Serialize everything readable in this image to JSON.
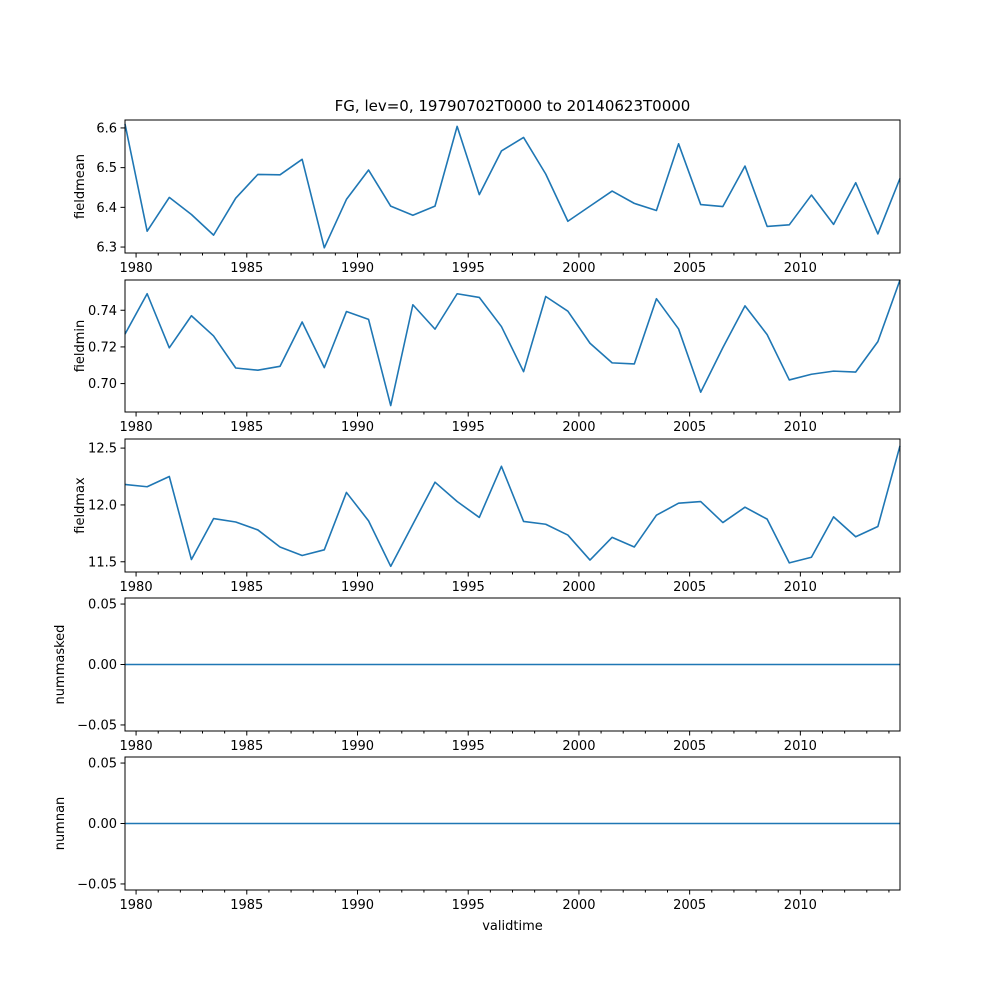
{
  "chart_data": [
    {
      "type": "line",
      "title": "FG, lev=0, 19790702T0000 to 20140623T0000",
      "ylabel": "fieldmean",
      "xlabel": "",
      "x": [
        1979.5,
        1980.5,
        1981.5,
        1982.5,
        1983.5,
        1984.5,
        1985.5,
        1986.5,
        1987.5,
        1988.5,
        1989.5,
        1990.5,
        1991.5,
        1992.5,
        1993.5,
        1994.5,
        1995.5,
        1996.5,
        1997.5,
        1998.5,
        1999.5,
        2000.5,
        2001.5,
        2002.5,
        2003.5,
        2004.5,
        2005.5,
        2006.5,
        2007.5,
        2008.5,
        2009.5,
        2010.5,
        2011.5,
        2012.5,
        2013.5,
        2014.5
      ],
      "values": [
        6.61,
        6.34,
        6.425,
        6.382,
        6.33,
        6.423,
        6.483,
        6.482,
        6.521,
        6.298,
        6.42,
        6.494,
        6.403,
        6.38,
        6.403,
        6.604,
        6.432,
        6.542,
        6.576,
        6.484,
        6.365,
        6.403,
        6.441,
        6.41,
        6.392,
        6.56,
        6.407,
        6.402,
        6.504,
        6.352,
        6.356,
        6.431,
        6.357,
        6.462,
        6.333,
        6.473
      ],
      "xlim": [
        1979.5,
        2014.5
      ],
      "ylim": [
        6.285,
        6.62
      ],
      "yticks": [
        6.3,
        6.4,
        6.5,
        6.6
      ],
      "ytick_labels": [
        "6.3",
        "6.4",
        "6.5",
        "6.6"
      ],
      "xticks": [
        1980,
        1985,
        1990,
        1995,
        2000,
        2005,
        2010
      ],
      "xtick_labels": [
        "1980",
        "1985",
        "1990",
        "1995",
        "2000",
        "2005",
        "2010"
      ],
      "grid": false,
      "color": "#1f77b4"
    },
    {
      "type": "line",
      "title": "",
      "ylabel": "fieldmin",
      "xlabel": "",
      "x": [
        1979.5,
        1980.5,
        1981.5,
        1982.5,
        1983.5,
        1984.5,
        1985.5,
        1986.5,
        1987.5,
        1988.5,
        1989.5,
        1990.5,
        1991.5,
        1992.5,
        1993.5,
        1994.5,
        1995.5,
        1996.5,
        1997.5,
        1998.5,
        1999.5,
        2000.5,
        2001.5,
        2002.5,
        2003.5,
        2004.5,
        2005.5,
        2006.5,
        2007.5,
        2008.5,
        2009.5,
        2010.5,
        2011.5,
        2012.5,
        2013.5,
        2014.5
      ],
      "values": [
        0.727,
        0.749,
        0.7195,
        0.737,
        0.726,
        0.7085,
        0.7073,
        0.7094,
        0.7336,
        0.7087,
        0.7393,
        0.735,
        0.688,
        0.743,
        0.7297,
        0.749,
        0.747,
        0.7311,
        0.7065,
        0.7475,
        0.7395,
        0.722,
        0.7113,
        0.7107,
        0.7463,
        0.7298,
        0.6953,
        0.7196,
        0.7424,
        0.7267,
        0.702,
        0.7051,
        0.7068,
        0.7063,
        0.7229,
        0.7565
      ],
      "xlim": [
        1979.5,
        2014.5
      ],
      "ylim": [
        0.6845,
        0.7565
      ],
      "yticks": [
        0.7,
        0.72,
        0.74
      ],
      "ytick_labels": [
        "0.70",
        "0.72",
        "0.74"
      ],
      "xticks": [
        1980,
        1985,
        1990,
        1995,
        2000,
        2005,
        2010
      ],
      "xtick_labels": [
        "1980",
        "1985",
        "1990",
        "1995",
        "2000",
        "2005",
        "2010"
      ],
      "grid": false,
      "color": "#1f77b4"
    },
    {
      "type": "line",
      "title": "",
      "ylabel": "fieldmax",
      "xlabel": "",
      "x": [
        1979.5,
        1980.5,
        1981.5,
        1982.5,
        1983.5,
        1984.5,
        1985.5,
        1986.5,
        1987.5,
        1988.5,
        1989.5,
        1990.5,
        1991.5,
        1992.5,
        1993.5,
        1994.5,
        1995.5,
        1996.5,
        1997.5,
        1998.5,
        1999.5,
        2000.5,
        2001.5,
        2002.5,
        2003.5,
        2004.5,
        2005.5,
        2006.5,
        2007.5,
        2008.5,
        2009.5,
        2010.5,
        2011.5,
        2012.5,
        2013.5,
        2014.5
      ],
      "values": [
        12.18,
        12.16,
        12.25,
        11.52,
        11.88,
        11.85,
        11.78,
        11.63,
        11.555,
        11.605,
        12.11,
        11.86,
        11.46,
        11.83,
        12.2,
        12.03,
        11.89,
        12.34,
        11.855,
        11.83,
        11.735,
        11.515,
        11.715,
        11.63,
        11.91,
        12.015,
        12.03,
        11.845,
        11.98,
        11.875,
        11.49,
        11.54,
        11.895,
        11.72,
        11.81,
        12.52
      ],
      "xlim": [
        1979.5,
        2014.5
      ],
      "ylim": [
        11.41,
        12.58
      ],
      "yticks": [
        11.5,
        12.0,
        12.5
      ],
      "ytick_labels": [
        "11.5",
        "12.0",
        "12.5"
      ],
      "xticks": [
        1980,
        1985,
        1990,
        1995,
        2000,
        2005,
        2010
      ],
      "xtick_labels": [
        "1980",
        "1985",
        "1990",
        "1995",
        "2000",
        "2005",
        "2010"
      ],
      "grid": false,
      "color": "#1f77b4"
    },
    {
      "type": "line",
      "title": "",
      "ylabel": "nummasked",
      "xlabel": "",
      "x": [
        1979.5,
        1980.5,
        1981.5,
        1982.5,
        1983.5,
        1984.5,
        1985.5,
        1986.5,
        1987.5,
        1988.5,
        1989.5,
        1990.5,
        1991.5,
        1992.5,
        1993.5,
        1994.5,
        1995.5,
        1996.5,
        1997.5,
        1998.5,
        1999.5,
        2000.5,
        2001.5,
        2002.5,
        2003.5,
        2004.5,
        2005.5,
        2006.5,
        2007.5,
        2008.5,
        2009.5,
        2010.5,
        2011.5,
        2012.5,
        2013.5,
        2014.5
      ],
      "values": [
        0,
        0,
        0,
        0,
        0,
        0,
        0,
        0,
        0,
        0,
        0,
        0,
        0,
        0,
        0,
        0,
        0,
        0,
        0,
        0,
        0,
        0,
        0,
        0,
        0,
        0,
        0,
        0,
        0,
        0,
        0,
        0,
        0,
        0,
        0,
        0
      ],
      "xlim": [
        1979.5,
        2014.5
      ],
      "ylim": [
        -0.055,
        0.055
      ],
      "yticks": [
        -0.05,
        0.0,
        0.05
      ],
      "ytick_labels": [
        "−0.05",
        "0.00",
        "0.05"
      ],
      "xticks": [
        1980,
        1985,
        1990,
        1995,
        2000,
        2005,
        2010
      ],
      "xtick_labels": [
        "1980",
        "1985",
        "1990",
        "1995",
        "2000",
        "2005",
        "2010"
      ],
      "grid": false,
      "color": "#1f77b4"
    },
    {
      "type": "line",
      "title": "",
      "ylabel": "numnan",
      "xlabel": "validtime",
      "x": [
        1979.5,
        1980.5,
        1981.5,
        1982.5,
        1983.5,
        1984.5,
        1985.5,
        1986.5,
        1987.5,
        1988.5,
        1989.5,
        1990.5,
        1991.5,
        1992.5,
        1993.5,
        1994.5,
        1995.5,
        1996.5,
        1997.5,
        1998.5,
        1999.5,
        2000.5,
        2001.5,
        2002.5,
        2003.5,
        2004.5,
        2005.5,
        2006.5,
        2007.5,
        2008.5,
        2009.5,
        2010.5,
        2011.5,
        2012.5,
        2013.5,
        2014.5
      ],
      "values": [
        0,
        0,
        0,
        0,
        0,
        0,
        0,
        0,
        0,
        0,
        0,
        0,
        0,
        0,
        0,
        0,
        0,
        0,
        0,
        0,
        0,
        0,
        0,
        0,
        0,
        0,
        0,
        0,
        0,
        0,
        0,
        0,
        0,
        0,
        0,
        0
      ],
      "xlim": [
        1979.5,
        2014.5
      ],
      "ylim": [
        -0.055,
        0.055
      ],
      "yticks": [
        -0.05,
        0.0,
        0.05
      ],
      "ytick_labels": [
        "−0.05",
        "0.00",
        "0.05"
      ],
      "xticks": [
        1980,
        1985,
        1990,
        1995,
        2000,
        2005,
        2010
      ],
      "xtick_labels": [
        "1980",
        "1985",
        "1990",
        "1995",
        "2000",
        "2005",
        "2010"
      ],
      "grid": false,
      "color": "#1f77b4"
    }
  ]
}
